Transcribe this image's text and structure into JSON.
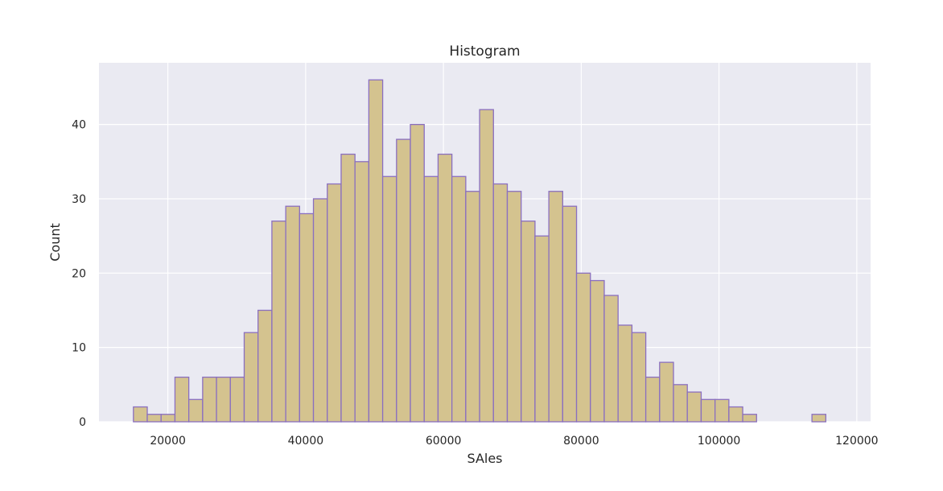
{
  "chart_data": {
    "type": "bar",
    "title": "Histogram",
    "xlabel": "SAles",
    "ylabel": "Count",
    "xlim": [
      10000,
      122000
    ],
    "ylim": [
      0,
      48.3
    ],
    "grid": true,
    "x_ticks": [
      20000,
      40000,
      60000,
      80000,
      100000,
      120000
    ],
    "y_ticks": [
      0,
      10,
      20,
      30,
      40
    ],
    "x_tick_labels": [
      "20000",
      "40000",
      "60000",
      "80000",
      "100000",
      "120000"
    ],
    "y_tick_labels": [
      "0",
      "10",
      "20",
      "30",
      "40"
    ],
    "bins": {
      "start": 15000,
      "width": 2010
    },
    "values": [
      2,
      1,
      1,
      6,
      3,
      6,
      6,
      6,
      12,
      15,
      27,
      29,
      28,
      30,
      32,
      36,
      35,
      46,
      33,
      38,
      40,
      33,
      36,
      33,
      31,
      42,
      32,
      31,
      27,
      25,
      31,
      29,
      20,
      19,
      17,
      13,
      12,
      6,
      8,
      5,
      4,
      3,
      3,
      2,
      1,
      0,
      0,
      0,
      0,
      1
    ],
    "colors": {
      "plot_background": "#eaeaf2",
      "grid": "#ffffff",
      "bar_fill": "#d4c38f",
      "bar_edge": "#8a6fc0",
      "text": "#262626"
    }
  }
}
